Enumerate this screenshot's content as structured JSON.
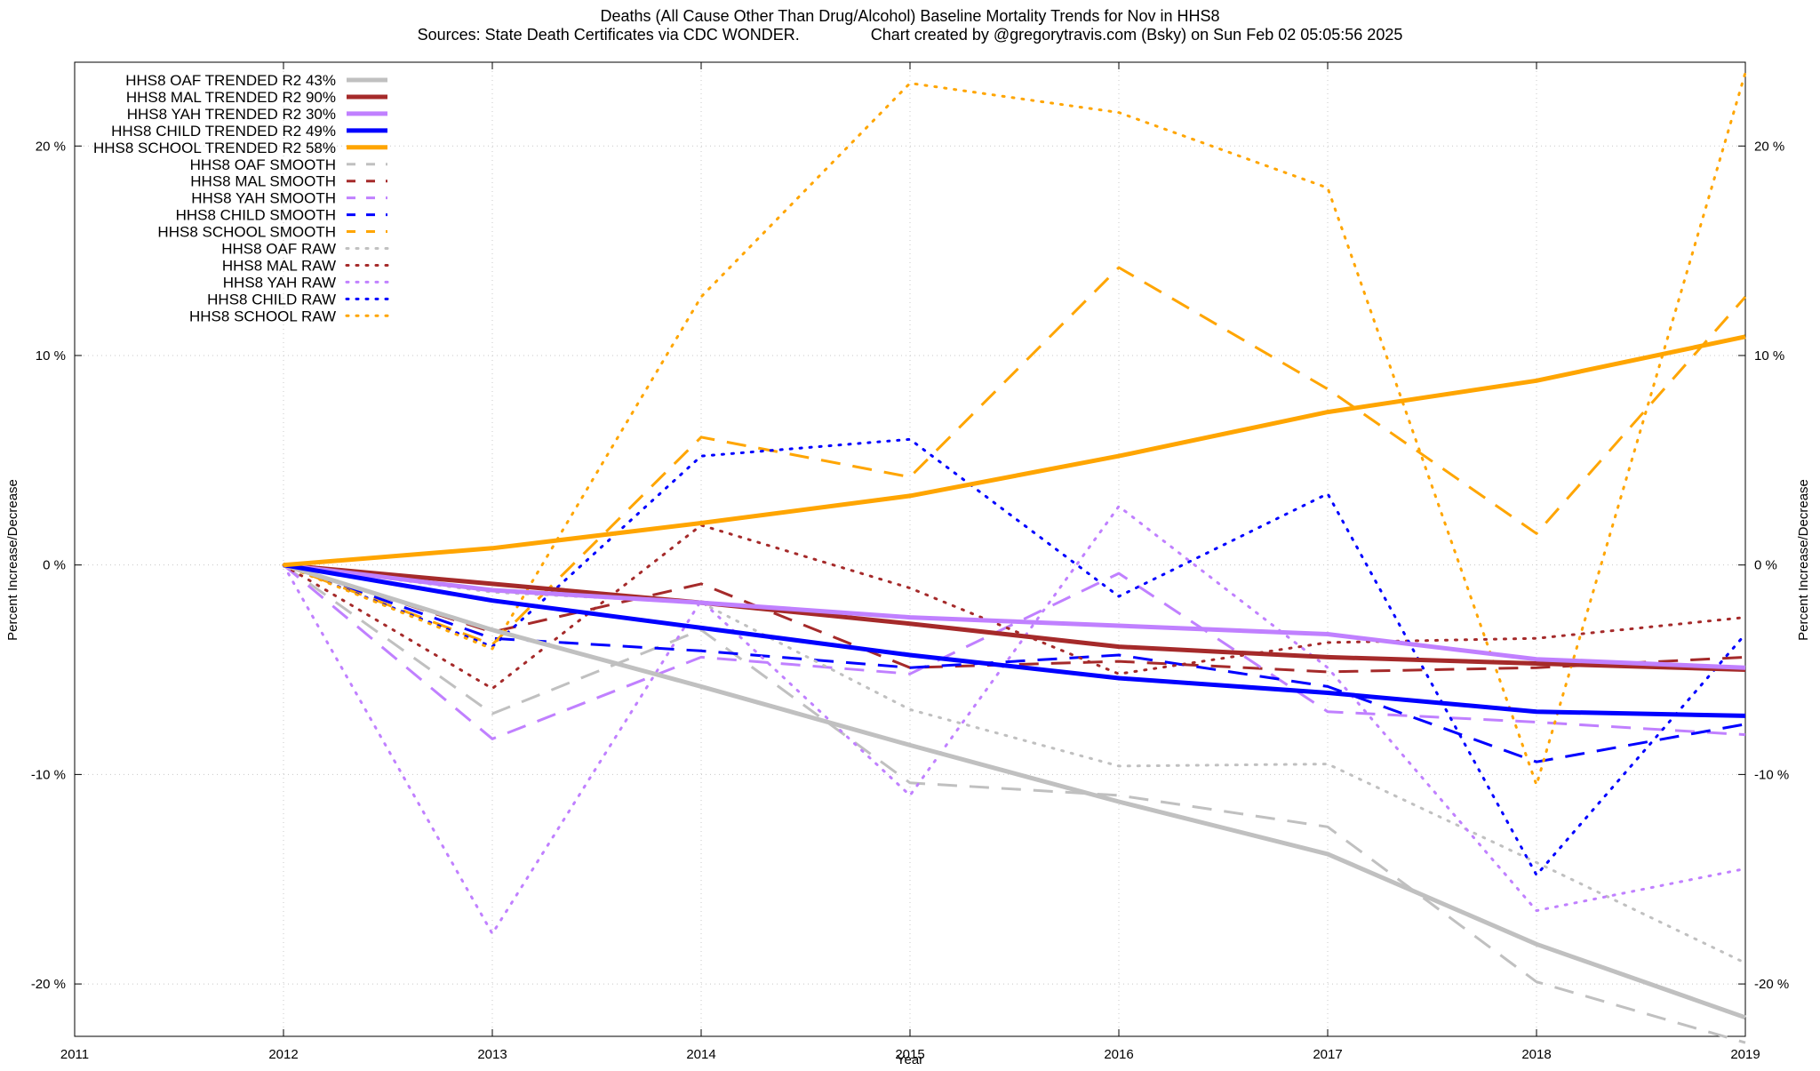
{
  "chart_data": {
    "type": "line",
    "title": "Deaths (All Cause Other Than Drug/Alcohol)  Baseline Mortality Trends for Nov in HHS8",
    "subtitle": "Sources: State Death Certificates via CDC WONDER.                Chart created by @gregorytravis.com (Bsky) on Sun Feb 02 05:05:56 2025",
    "xlabel": "Year",
    "ylabel": "Percent Increase/Decrease",
    "y2label": "Percent Increase/Decrease",
    "xlim": [
      2011,
      2019
    ],
    "ylim": [
      -22.5,
      24
    ],
    "grid": true,
    "legend_position": "top-left",
    "x_ticks": [
      "2011",
      "2012",
      "2013",
      "2014",
      "2015",
      "2016",
      "2017",
      "2018",
      "2019"
    ],
    "y_ticks": [
      {
        "value": 20,
        "label": "20 %"
      },
      {
        "value": 10,
        "label": "10 %"
      },
      {
        "value": 0,
        "label": "0 %"
      },
      {
        "value": -10,
        "label": "-10 %"
      },
      {
        "value": -20,
        "label": "-20 %"
      }
    ],
    "x": [
      2012,
      2013,
      2014,
      2015,
      2016,
      2017,
      2018,
      2019
    ],
    "series": [
      {
        "name": "HHS8 OAF TRENDED R2  43%",
        "color": "#c0c0c0",
        "style": "solid",
        "width": 5,
        "values": [
          0,
          -3.1,
          -5.8,
          -8.6,
          -11.3,
          -13.8,
          -18.1,
          -21.6
        ]
      },
      {
        "name": "HHS8 MAL TRENDED R2  90%",
        "color": "#a52a2a",
        "style": "solid",
        "width": 5,
        "values": [
          0,
          -0.9,
          -1.8,
          -2.8,
          -3.9,
          -4.4,
          -4.7,
          -5.0
        ]
      },
      {
        "name": "HHS8 YAH TRENDED R2  30%",
        "color": "#c080ff",
        "style": "solid",
        "width": 5,
        "values": [
          0,
          -1.2,
          -1.8,
          -2.5,
          -2.9,
          -3.3,
          -4.5,
          -4.9
        ]
      },
      {
        "name": "HHS8 CHILD TRENDED R2  49%",
        "color": "#0000ff",
        "style": "solid",
        "width": 5,
        "values": [
          0,
          -1.7,
          -3.0,
          -4.3,
          -5.4,
          -6.1,
          -7.0,
          -7.2
        ]
      },
      {
        "name": "HHS8 SCHOOL TRENDED R2  58%",
        "color": "#ffa500",
        "style": "solid",
        "width": 5,
        "values": [
          0,
          0.8,
          2.0,
          3.3,
          5.2,
          7.3,
          8.8,
          10.9
        ]
      },
      {
        "name": "HHS8 OAF SMOOTH",
        "color": "#c0c0c0",
        "style": "dashed",
        "width": 3,
        "values": [
          0,
          -7.1,
          -3.1,
          -10.4,
          -11.0,
          -12.5,
          -19.9,
          -22.8
        ]
      },
      {
        "name": "HHS8 MAL SMOOTH",
        "color": "#a52a2a",
        "style": "dashed",
        "width": 3,
        "values": [
          0,
          -3.2,
          -0.9,
          -4.9,
          -4.6,
          -5.1,
          -4.9,
          -4.4
        ]
      },
      {
        "name": "HHS8 YAH SMOOTH",
        "color": "#c080ff",
        "style": "dashed",
        "width": 3,
        "values": [
          0,
          -8.3,
          -4.4,
          -5.2,
          -0.4,
          -7.0,
          -7.5,
          -8.1
        ]
      },
      {
        "name": "HHS8 CHILD SMOOTH",
        "color": "#0000ff",
        "style": "dashed",
        "width": 3,
        "values": [
          0,
          -3.5,
          -4.1,
          -4.9,
          -4.3,
          -5.8,
          -9.4,
          -7.6
        ]
      },
      {
        "name": "HHS8 SCHOOL SMOOTH",
        "color": "#ffa500",
        "style": "dashed",
        "width": 3,
        "values": [
          0,
          -3.8,
          6.1,
          4.2,
          14.2,
          8.4,
          1.5,
          12.8
        ]
      },
      {
        "name": "HHS8 OAF RAW",
        "color": "#c0c0c0",
        "style": "dotted",
        "width": 3,
        "values": [
          0,
          -1.3,
          -1.8,
          -6.9,
          -9.6,
          -9.5,
          -14.2,
          -19.0
        ]
      },
      {
        "name": "HHS8 MAL RAW",
        "color": "#a52a2a",
        "style": "dotted",
        "width": 3,
        "values": [
          0,
          -5.9,
          1.9,
          -1.1,
          -5.2,
          -3.7,
          -3.5,
          -2.5
        ]
      },
      {
        "name": "HHS8 YAH RAW",
        "color": "#c080ff",
        "style": "dotted",
        "width": 3,
        "values": [
          0,
          -17.6,
          -1.7,
          -11.0,
          2.8,
          -4.9,
          -16.5,
          -14.5
        ]
      },
      {
        "name": "HHS8 CHILD RAW",
        "color": "#0000ff",
        "style": "dotted",
        "width": 3,
        "values": [
          0,
          -3.9,
          5.2,
          6.0,
          -1.5,
          3.4,
          -14.8,
          -3.3
        ]
      },
      {
        "name": "HHS8 SCHOOL RAW",
        "color": "#ffa500",
        "style": "dotted",
        "width": 3,
        "values": [
          0,
          -4.0,
          12.8,
          23.0,
          21.6,
          18.0,
          -10.5,
          23.5
        ]
      }
    ]
  }
}
